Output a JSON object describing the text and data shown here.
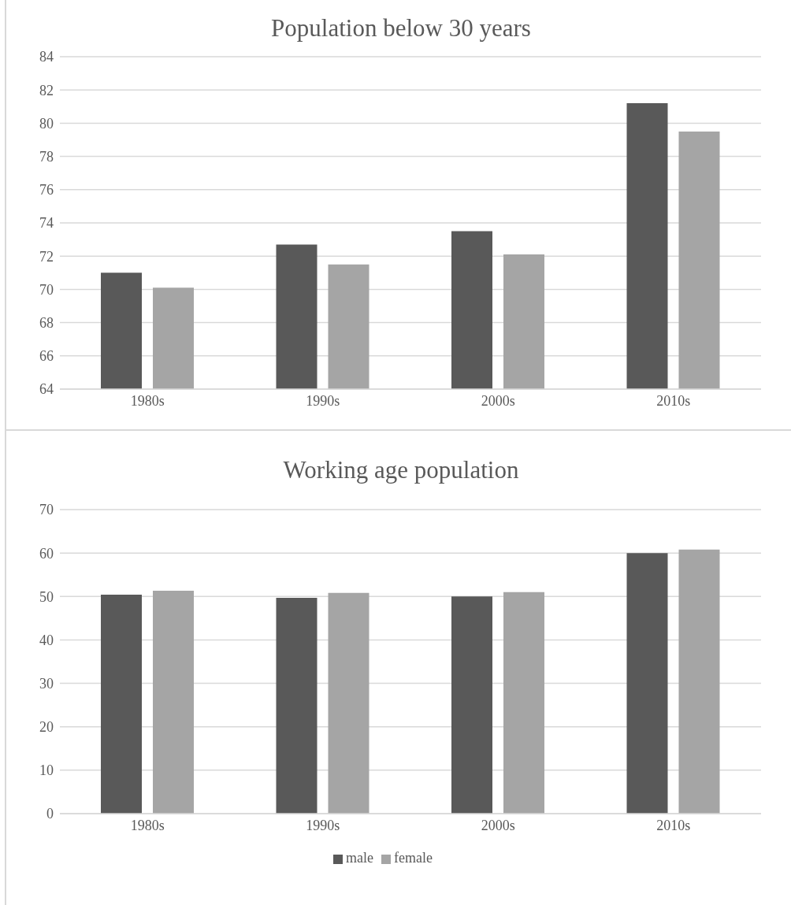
{
  "chart_data": [
    {
      "type": "bar",
      "title": "Population below 30 years",
      "categories": [
        "1980s",
        "1990s",
        "2000s",
        "2010s"
      ],
      "series": [
        {
          "color": "#595959",
          "values": [
            71.0,
            72.7,
            73.5,
            81.2
          ]
        },
        {
          "color": "#a5a5a5",
          "values": [
            70.1,
            71.5,
            72.1,
            79.5
          ]
        }
      ],
      "ylim": [
        64,
        84
      ],
      "yticks": [
        64,
        66,
        68,
        70,
        72,
        74,
        76,
        78,
        80,
        82,
        84
      ],
      "grid": "y"
    },
    {
      "type": "bar",
      "title": "Working age population",
      "categories": [
        "1980s",
        "1990s",
        "2000s",
        "2010s"
      ],
      "series": [
        {
          "name": "male",
          "color": "#595959",
          "values": [
            50.4,
            49.7,
            50.0,
            60.0
          ]
        },
        {
          "name": "female",
          "color": "#a5a5a5",
          "values": [
            51.3,
            50.8,
            51.0,
            60.8
          ]
        }
      ],
      "ylim": [
        0,
        70
      ],
      "yticks": [
        0,
        10,
        20,
        30,
        40,
        50,
        60,
        70
      ],
      "grid": "y",
      "legend": "bottom"
    }
  ]
}
